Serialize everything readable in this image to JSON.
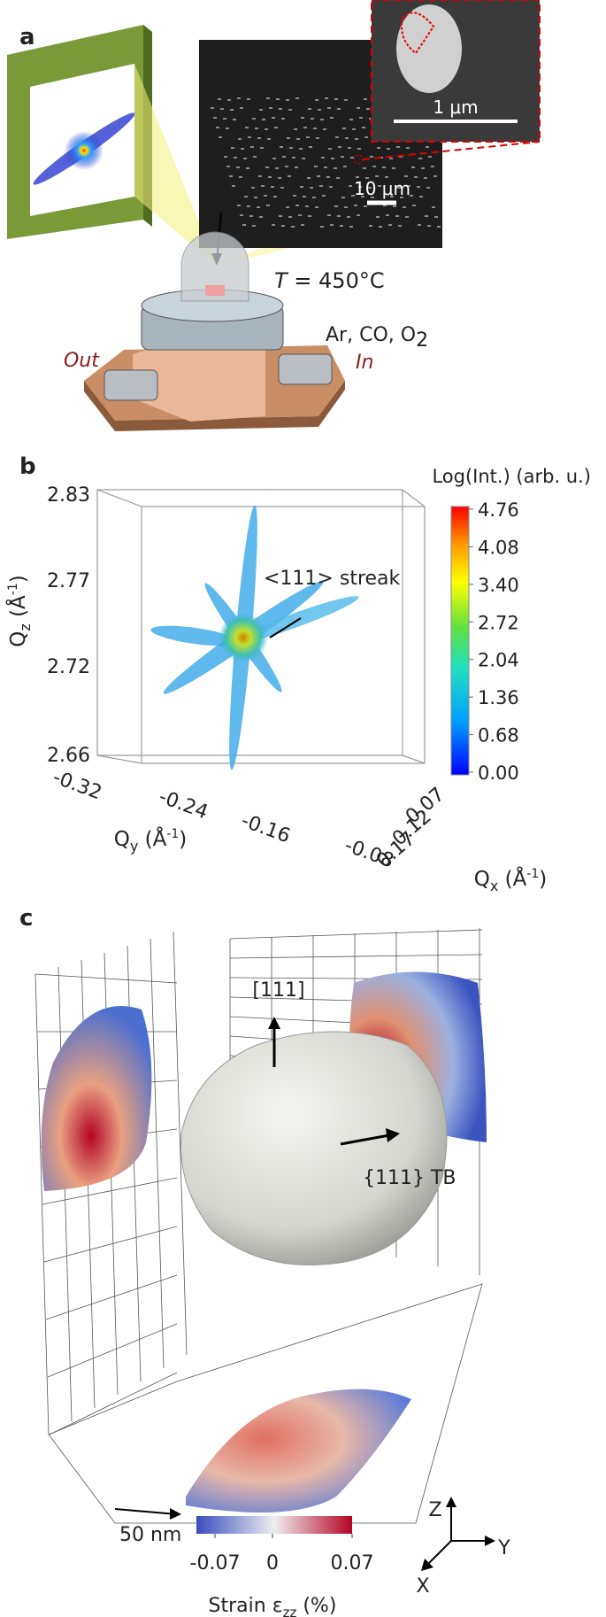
{
  "panel_a": {
    "label": "a",
    "inset_scale": "1 μm",
    "image_scale": "10 μm",
    "temperature": {
      "symbol": "T",
      "text": " = 450°C"
    },
    "gases": {
      "text": "Ar, CO, O",
      "sub": "2"
    },
    "outlet": "Out",
    "inlet": "In"
  },
  "panel_b": {
    "label": "b",
    "colorbar_title": "Log(Int.) (arb. u.)",
    "colorbar_ticks": [
      "4.76",
      "4.08",
      "3.40",
      "2.72",
      "2.04",
      "1.36",
      "0.68",
      "0.00"
    ],
    "annotation": "<111> streak",
    "qz_axis": {
      "symbol": "Q",
      "sub": "z",
      "unit": " (Å",
      "sup": "-1",
      "close": ")",
      "ticks": [
        "2.83",
        "2.77",
        "2.72",
        "2.66"
      ]
    },
    "qy_axis": {
      "symbol": "Q",
      "sub": "y",
      "unit": " (Å",
      "sup": "-1",
      "close": ")",
      "ticks": [
        "-0.32",
        "-0.24",
        "-0.16",
        "-0.08"
      ]
    },
    "qx_axis": {
      "symbol": "Q",
      "sub": "x",
      "unit": " (Å",
      "sup": "-1",
      "close": ")",
      "ticks": [
        "0.07",
        "0.12",
        "0.17"
      ]
    }
  },
  "panel_c": {
    "label": "c",
    "direction": "[111]",
    "twin_boundary": "{111} TB",
    "scale_bar": "50 nm",
    "axes": [
      "Z",
      "Y",
      "X"
    ],
    "colorbar_ticks": [
      "-0.07",
      "0",
      "0.07"
    ],
    "colorbar_title": {
      "text": "Strain ε",
      "sub": "zz",
      "unit": " (%)"
    }
  }
}
